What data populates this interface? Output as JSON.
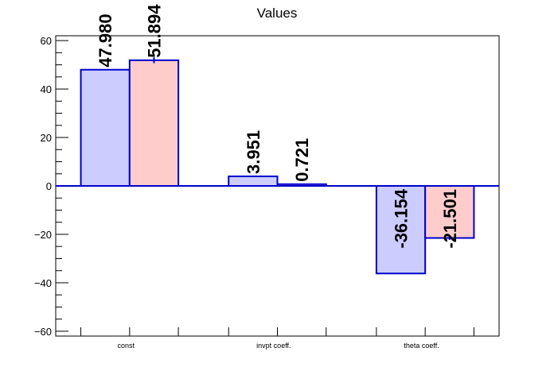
{
  "chart_data": {
    "type": "bar",
    "title": "Values",
    "xlabel": "",
    "ylabel": "",
    "categories": [
      "const",
      "invpt coeff.",
      "theta coeff."
    ],
    "series": [
      {
        "values": [
          47.98,
          3.951,
          -36.154
        ],
        "labels": [
          "47.980",
          "3.951",
          "-36.154"
        ],
        "errors": [
          0,
          0,
          0
        ],
        "fill": "#ccccff",
        "stroke": "#0000cc"
      },
      {
        "values": [
          51.894,
          0.721,
          -21.501
        ],
        "labels": [
          "51.894",
          "0.721",
          "-21.501"
        ],
        "errors": [
          1.2,
          0.2,
          0.8
        ],
        "fill": "#ffcccc",
        "stroke": "#0000cc"
      }
    ],
    "ylim": [
      -62,
      62
    ],
    "yticks": [
      -60,
      -40,
      -20,
      0,
      20,
      40,
      60
    ],
    "grid": false,
    "legend": "none",
    "baseline_color": "#0000cc"
  }
}
